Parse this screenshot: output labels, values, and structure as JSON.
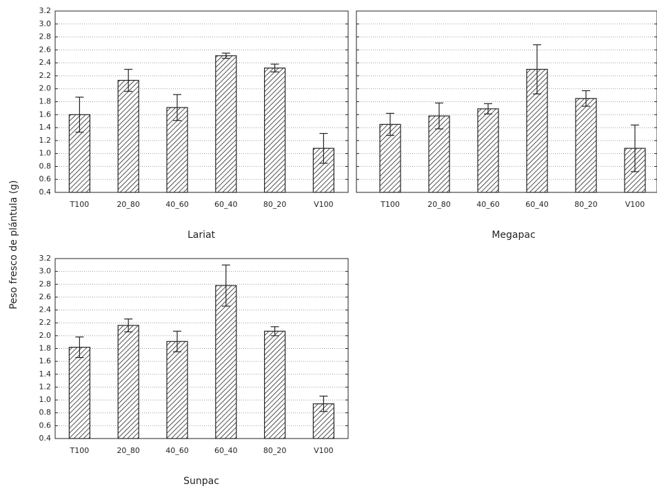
{
  "chart_data": [
    {
      "type": "bar",
      "xlabel": "Lariat",
      "ylabel": "Peso fresco de plántula (g)",
      "categories": [
        "T100",
        "20_80",
        "40_60",
        "60_40",
        "80_20",
        "V100"
      ],
      "values": [
        1.6,
        2.13,
        1.71,
        2.51,
        2.32,
        1.08
      ],
      "errors": [
        0.27,
        0.17,
        0.2,
        0.04,
        0.06,
        0.23
      ],
      "ylim": [
        0.4,
        3.2
      ],
      "yticks": [
        0.4,
        0.6,
        0.8,
        {
          "value": 1,
          "label": "1.0"
        },
        1.2,
        1.4,
        1.6,
        1.8,
        {
          "value": 2,
          "label": "2.0"
        },
        2.2,
        2.4,
        2.6,
        2.8,
        {
          "value": 3,
          "label": "3.0"
        },
        3.2
      ],
      "grid": true,
      "color": "#222222"
    },
    {
      "type": "bar",
      "xlabel": "Megapac",
      "categories": [
        "T100",
        "20_80",
        "40_60",
        "60_40",
        "80_20",
        "V100"
      ],
      "values": [
        1.45,
        1.58,
        1.69,
        2.3,
        1.85,
        1.08
      ],
      "errors": [
        0.17,
        0.2,
        0.08,
        0.38,
        0.12,
        0.36
      ],
      "ylim": [
        0.4,
        3.2
      ],
      "yticks": [
        0.4,
        0.6,
        0.8,
        1,
        1.2,
        1.4,
        1.6,
        1.8,
        2,
        2.2,
        2.4,
        2.6,
        2.8,
        3,
        3.2
      ],
      "grid": true,
      "color": "#222222"
    },
    {
      "type": "bar",
      "xlabel": "Sunpac",
      "categories": [
        "T100",
        "20_80",
        "40_60",
        "60_40",
        "80_20",
        "V100"
      ],
      "values": [
        1.82,
        2.16,
        1.91,
        2.78,
        2.07,
        0.94
      ],
      "errors": [
        0.16,
        0.1,
        0.16,
        0.32,
        0.07,
        0.12
      ],
      "ylim": [
        0.4,
        3.2
      ],
      "yticks": [
        0.4,
        0.6,
        0.8,
        {
          "value": 1,
          "label": "1.0"
        },
        1.2,
        1.4,
        1.6,
        1.8,
        {
          "value": 2,
          "label": "2.0"
        },
        2.2,
        2.4,
        2.6,
        2.8,
        {
          "value": 3,
          "label": "3.0"
        },
        3.2
      ],
      "grid": true,
      "color": "#222222"
    }
  ]
}
